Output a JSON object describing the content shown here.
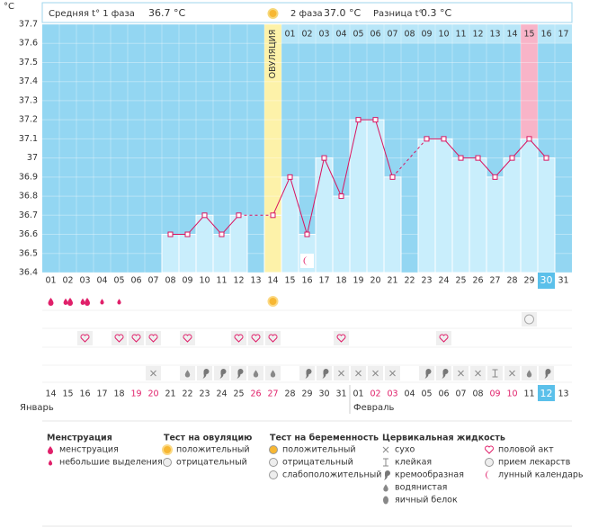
{
  "chart_data": {
    "type": "line",
    "y_unit": "°C",
    "phase1_label": "Средняя t° 1 фаза",
    "phase1_avg": "36.7 °C",
    "phase2_label": "2 фаза",
    "phase2_avg": "37.0 °C",
    "diff_label": "Разница t°",
    "diff_value": "0.3 °C",
    "ovulation_label": "ОВУЛЯЦИЯ",
    "categories": [
      "01",
      "02",
      "03",
      "04",
      "05",
      "06",
      "07",
      "08",
      "09",
      "10",
      "11",
      "12",
      "13",
      "14",
      "15",
      "16",
      "17",
      "18",
      "19",
      "20",
      "21",
      "22",
      "23",
      "24",
      "25",
      "26",
      "27",
      "28",
      "29",
      "30",
      "31"
    ],
    "phase2_days": [
      "01",
      "02",
      "03",
      "04",
      "05",
      "06",
      "07",
      "08",
      "09",
      "10",
      "11",
      "12",
      "13",
      "14",
      "15",
      "16",
      "17"
    ],
    "dates": [
      "14",
      "15",
      "16",
      "17",
      "18",
      "19",
      "20",
      "21",
      "22",
      "23",
      "24",
      "25",
      "26",
      "27",
      "28",
      "29",
      "30",
      "31",
      "01",
      "02",
      "03",
      "04",
      "05",
      "06",
      "07",
      "08",
      "09",
      "10",
      "11",
      "12",
      "13"
    ],
    "months": [
      "Январь",
      "Февраль"
    ],
    "series": [
      {
        "color": "#d9135f",
        "values": [
          null,
          null,
          null,
          null,
          null,
          null,
          null,
          36.6,
          36.6,
          36.7,
          36.6,
          36.7,
          null,
          36.7,
          36.9,
          36.6,
          37.0,
          36.8,
          37.2,
          37.2,
          36.9,
          null,
          37.1,
          37.1,
          37.0,
          37.0,
          36.9,
          37.0,
          37.1,
          37.0,
          null
        ]
      }
    ],
    "ylim": [
      36.4,
      37.7
    ],
    "yticks": [
      36.4,
      36.5,
      36.6,
      36.7,
      36.8,
      36.9,
      37,
      37.1,
      37.2,
      37.3,
      37.4,
      37.5,
      37.6,
      37.7
    ],
    "grid": true,
    "legend": [
      {
        "title": "Менструация",
        "items": [
          "менструация",
          "небольшие выделения"
        ]
      },
      {
        "title": "Тест на овуляцию",
        "items": [
          "положительный",
          "отрицательный"
        ]
      },
      {
        "title": "Тест на беременность",
        "items": [
          "положительный",
          "отрицательный",
          "слабоположительный"
        ]
      },
      {
        "title": "Цервикальная жидкость",
        "items": [
          "сухо",
          "клейкая",
          "кремообразная",
          "водянистая",
          "яичный белок"
        ]
      },
      {
        "items": [
          "половой акт",
          "прием лекарств",
          "лунный календарь"
        ]
      }
    ]
  }
}
